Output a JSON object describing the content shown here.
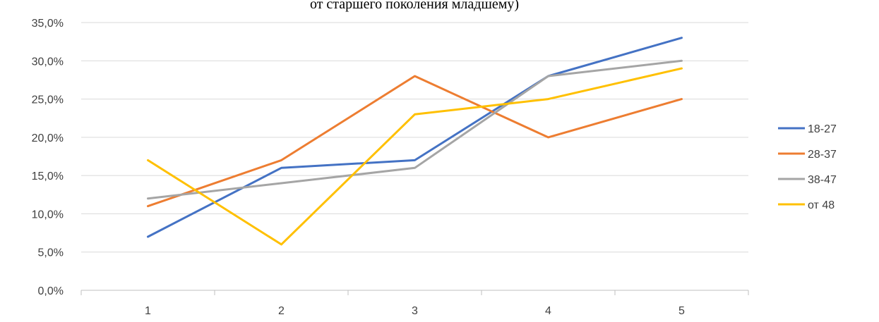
{
  "chart_data": {
    "type": "line",
    "title": "от старшего поколения младшему)",
    "xlabel": "",
    "ylabel": "",
    "categories": [
      "1",
      "2",
      "3",
      "4",
      "5"
    ],
    "ylim": [
      0,
      35
    ],
    "yticks": [
      0,
      5,
      10,
      15,
      20,
      25,
      30,
      35
    ],
    "ytick_labels": [
      "0,0%",
      "5,0%",
      "10,0%",
      "15,0%",
      "20,0%",
      "25,0%",
      "30,0%",
      "35,0%"
    ],
    "grid": true,
    "legend_position": "right",
    "series": [
      {
        "name": "18-27",
        "color": "#4472c4",
        "values": [
          7,
          16,
          17,
          28,
          33
        ]
      },
      {
        "name": "28-37",
        "color": "#ed7d31",
        "values": [
          11,
          17,
          28,
          20,
          25
        ]
      },
      {
        "name": "38-47",
        "color": "#a5a5a5",
        "values": [
          12,
          14,
          16,
          28,
          30
        ]
      },
      {
        "name": "от 48",
        "color": "#ffc000",
        "values": [
          17,
          6,
          23,
          25,
          29
        ]
      }
    ]
  }
}
